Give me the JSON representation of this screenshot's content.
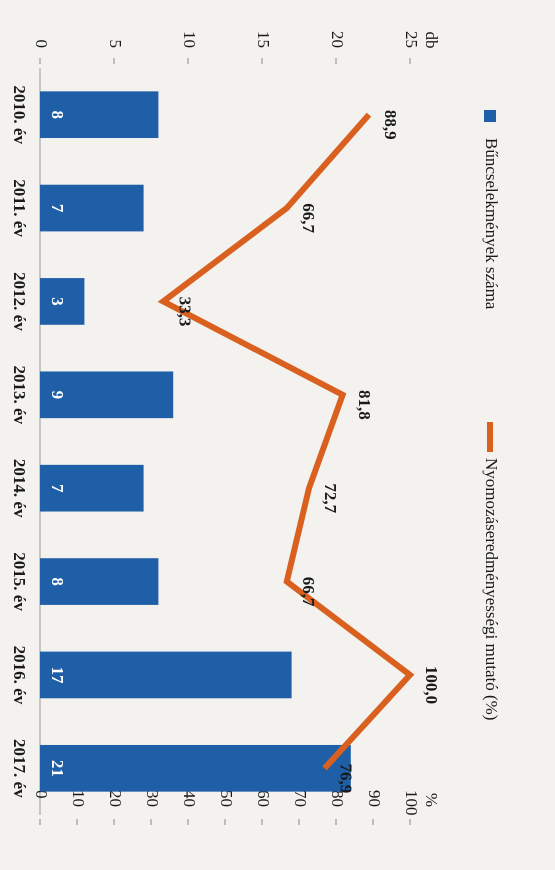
{
  "chart_data": {
    "type": "bar_line",
    "y_label": "db",
    "y2_label": "%",
    "categories": [
      "2010. év",
      "2011. év",
      "2012. év",
      "2013. év",
      "2014. év",
      "2015. év",
      "2016. év",
      "2017. év"
    ],
    "series": [
      {
        "name": "Bűncselekmények száma",
        "type": "bar",
        "color": "#1f5fa8",
        "values": [
          8,
          7,
          3,
          9,
          7,
          8,
          17,
          21
        ]
      },
      {
        "name": "Nyomozáseredményességi mutató (%)",
        "type": "line",
        "axis": "y2",
        "color": "#d9601f",
        "values": [
          88.9,
          66.7,
          33.3,
          81.8,
          72.7,
          66.7,
          100.0,
          76.9
        ],
        "value_labels": [
          "88,9",
          "66,7",
          "33,3",
          "81,8",
          "72,7",
          "66,7",
          "100,0",
          "76,9"
        ]
      }
    ],
    "ylim": [
      0,
      25
    ],
    "yticks": [
      0,
      5,
      10,
      15,
      20,
      25
    ],
    "y2lim": [
      0,
      100
    ],
    "y2ticks": [
      0,
      10,
      20,
      30,
      40,
      50,
      60,
      70,
      80,
      90,
      100
    ],
    "legend": "top"
  }
}
